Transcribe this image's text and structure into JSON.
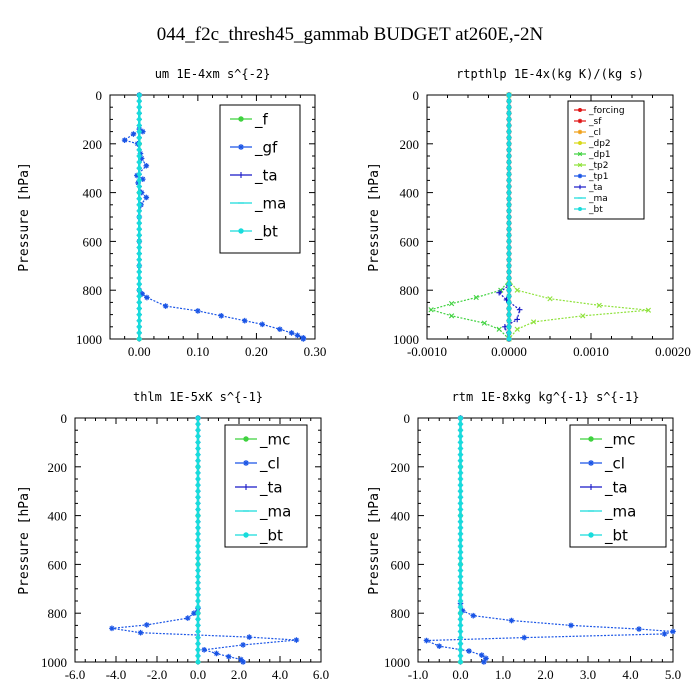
{
  "figure_title": "044_f2c_thresh45_gammab  BUDGET at260E,-2N",
  "colors": {
    "green": "#3fd23f",
    "blue": "#1a55e6",
    "dkblue": "#1818c8",
    "cyan": "#18dcdc",
    "red": "#e01414",
    "orange": "#f0a018",
    "yellow": "#d8d818",
    "ltgreen": "#8ee23a"
  },
  "chart_data": [
    {
      "type": "line",
      "title": "um  1E-4xm s^{-2}",
      "ylabel": "Pressure [hPa]",
      "xlim": [
        -0.05,
        0.3
      ],
      "ylim": [
        1000,
        0
      ],
      "y_inverted": true,
      "xticks": [
        "0.00",
        "0.10",
        "0.20",
        "0.30"
      ],
      "xtick_values": [
        0,
        0.1,
        0.2,
        0.3
      ],
      "yticks": [
        "0",
        "200",
        "400",
        "600",
        "800",
        "1000"
      ],
      "legend_position": "top-right",
      "series": [
        {
          "name": "_f",
          "color": "green",
          "marker": "o",
          "points": [
            [
              0,
              0
            ],
            [
              0,
              200
            ],
            [
              0,
              400
            ],
            [
              0,
              600
            ],
            [
              0,
              800
            ],
            [
              0,
              1000
            ]
          ]
        },
        {
          "name": "_gf",
          "color": "blue",
          "marker": "*",
          "points": [
            [
              0,
              0
            ],
            [
              0,
              140
            ],
            [
              0.006,
              150
            ],
            [
              -0.01,
              160
            ],
            [
              -0.025,
              185
            ],
            [
              -0.003,
              200
            ],
            [
              0.002,
              240
            ],
            [
              0.004,
              260
            ],
            [
              0.012,
              290
            ],
            [
              -0.004,
              330
            ],
            [
              0.006,
              345
            ],
            [
              -0.002,
              360
            ],
            [
              0.004,
              400
            ],
            [
              0.012,
              420
            ],
            [
              0.003,
              450
            ],
            [
              0,
              500
            ],
            [
              0,
              600
            ],
            [
              0,
              700
            ],
            [
              0,
              800
            ],
            [
              0.005,
              815
            ],
            [
              0.013,
              830
            ],
            [
              0.045,
              865
            ],
            [
              0.1,
              885
            ],
            [
              0.14,
              905
            ],
            [
              0.18,
              925
            ],
            [
              0.21,
              940
            ],
            [
              0.24,
              960
            ],
            [
              0.26,
              975
            ],
            [
              0.27,
              985
            ],
            [
              0.28,
              995
            ],
            [
              0.28,
              1000
            ]
          ]
        },
        {
          "name": "_ta",
          "color": "dkblue",
          "marker": "+",
          "points": [
            [
              0,
              0
            ],
            [
              0,
              1000
            ]
          ]
        },
        {
          "name": "_ma",
          "color": "cyan",
          "marker": "-",
          "points": [
            [
              0,
              0
            ],
            [
              0,
              1000
            ]
          ]
        },
        {
          "name": "_bt",
          "color": "cyan",
          "marker": "o",
          "points": [
            [
              0,
              0
            ],
            [
              0,
              1000
            ]
          ]
        }
      ]
    },
    {
      "type": "line",
      "title": "rtpthlp  1E-4x(kg K)/(kg s)",
      "ylabel": "Pressure [hPa]",
      "xlim": [
        -0.001,
        0.002
      ],
      "ylim": [
        1000,
        0
      ],
      "y_inverted": true,
      "xticks": [
        "-0.0010",
        "0.0000",
        "0.0010",
        "0.0020"
      ],
      "xtick_values": [
        -0.001,
        0,
        0.001,
        0.002
      ],
      "yticks": [
        "0",
        "200",
        "400",
        "600",
        "800",
        "1000"
      ],
      "legend_position": "top-right",
      "series": [
        {
          "name": "_forcing",
          "color": "red",
          "marker": "o",
          "points": [
            [
              0,
              0
            ],
            [
              0,
              1000
            ]
          ]
        },
        {
          "name": "_sf",
          "color": "red",
          "marker": "*",
          "points": [
            [
              0,
              0
            ],
            [
              0,
              1000
            ]
          ]
        },
        {
          "name": "_cl",
          "color": "orange",
          "marker": "*",
          "points": [
            [
              0,
              0
            ],
            [
              0,
              1000
            ]
          ]
        },
        {
          "name": "_dp2",
          "color": "yellow",
          "marker": "o",
          "points": [
            [
              0,
              0
            ],
            [
              0,
              1000
            ]
          ]
        },
        {
          "name": "_dp1",
          "color": "green",
          "marker": "x",
          "points": [
            [
              0,
              0
            ],
            [
              0,
              760
            ],
            [
              -0.0001,
              800
            ],
            [
              -0.0004,
              830
            ],
            [
              -0.0007,
              855
            ],
            [
              -0.00095,
              880
            ],
            [
              -0.0007,
              905
            ],
            [
              -0.0003,
              935
            ],
            [
              -0.00012,
              960
            ],
            [
              0,
              1000
            ]
          ]
        },
        {
          "name": "_tp2",
          "color": "ltgreen",
          "marker": "x",
          "points": [
            [
              0,
              0
            ],
            [
              0,
              760
            ],
            [
              0.0001,
              800
            ],
            [
              0.0005,
              835
            ],
            [
              0.0011,
              862
            ],
            [
              0.0017,
              882
            ],
            [
              0.0009,
              905
            ],
            [
              0.0003,
              930
            ],
            [
              0.0001,
              960
            ],
            [
              0,
              1000
            ]
          ]
        },
        {
          "name": "_tp1",
          "color": "blue",
          "marker": "*",
          "points": [
            [
              0,
              0
            ],
            [
              0,
              1000
            ]
          ]
        },
        {
          "name": "_ta",
          "color": "dkblue",
          "marker": "+",
          "points": [
            [
              0,
              0
            ],
            [
              0,
              780
            ],
            [
              -0.00012,
              810
            ],
            [
              -3e-05,
              840
            ],
            [
              0.00013,
              880
            ],
            [
              0.0001,
              920
            ],
            [
              -5e-05,
              950
            ],
            [
              0,
              1000
            ]
          ]
        },
        {
          "name": "_ma",
          "color": "cyan",
          "marker": "-",
          "points": [
            [
              0,
              0
            ],
            [
              0,
              1000
            ]
          ]
        },
        {
          "name": "_bt",
          "color": "cyan",
          "marker": "o",
          "points": [
            [
              0,
              0
            ],
            [
              0,
              1000
            ]
          ]
        }
      ]
    },
    {
      "type": "line",
      "title": "thlm  1E-5xK s^{-1}",
      "ylabel": "Pressure [hPa]",
      "xlim": [
        -6,
        6
      ],
      "ylim": [
        1000,
        0
      ],
      "y_inverted": true,
      "xticks": [
        "-6.0",
        "-4.0",
        "-2.0",
        "0.0",
        "2.0",
        "4.0",
        "6.0"
      ],
      "xtick_values": [
        -6,
        -4,
        -2,
        0,
        2,
        4,
        6
      ],
      "yticks": [
        "0",
        "200",
        "400",
        "600",
        "800",
        "1000"
      ],
      "legend_position": "top-right",
      "series": [
        {
          "name": "_mc",
          "color": "green",
          "marker": "o",
          "points": [
            [
              0,
              0
            ],
            [
              0,
              200
            ],
            [
              0,
              400
            ],
            [
              0,
              600
            ],
            [
              0,
              800
            ],
            [
              0,
              1000
            ]
          ]
        },
        {
          "name": "_cl",
          "color": "blue",
          "marker": "*",
          "points": [
            [
              0,
              0
            ],
            [
              0,
              780
            ],
            [
              -0.2,
              800
            ],
            [
              -0.5,
              820
            ],
            [
              -2.5,
              848
            ],
            [
              -4.2,
              862
            ],
            [
              -2.8,
              880
            ],
            [
              2.5,
              898
            ],
            [
              4.8,
              910
            ],
            [
              2.2,
              930
            ],
            [
              0.3,
              950
            ],
            [
              0.9,
              965
            ],
            [
              1.5,
              978
            ],
            [
              2.1,
              990
            ],
            [
              2.2,
              1000
            ]
          ]
        },
        {
          "name": "_ta",
          "color": "dkblue",
          "marker": "+",
          "points": [
            [
              0,
              0
            ],
            [
              0,
              1000
            ]
          ]
        },
        {
          "name": "_ma",
          "color": "cyan",
          "marker": "-",
          "points": [
            [
              0,
              0
            ],
            [
              0,
              1000
            ]
          ]
        },
        {
          "name": "_bt",
          "color": "cyan",
          "marker": "o",
          "points": [
            [
              0,
              0
            ],
            [
              0,
              1000
            ]
          ]
        }
      ]
    },
    {
      "type": "line",
      "title": "rtm  1E-8xkg kg^{-1} s^{-1}",
      "ylabel": "Pressure [hPa]",
      "xlim": [
        -1,
        5
      ],
      "ylim": [
        1000,
        0
      ],
      "y_inverted": true,
      "xticks": [
        "-1.0",
        "0.0",
        "1.0",
        "2.0",
        "3.0",
        "4.0",
        "5.0"
      ],
      "xtick_values": [
        -1,
        0,
        1,
        2,
        3,
        4,
        5
      ],
      "yticks": [
        "0",
        "200",
        "400",
        "600",
        "800",
        "1000"
      ],
      "legend_position": "top-right",
      "series": [
        {
          "name": "_mc",
          "color": "green",
          "marker": "o",
          "points": [
            [
              0,
              0
            ],
            [
              0,
              200
            ],
            [
              0,
              400
            ],
            [
              0,
              600
            ],
            [
              0,
              800
            ],
            [
              0,
              1000
            ]
          ]
        },
        {
          "name": "_cl",
          "color": "blue",
          "marker": "*",
          "points": [
            [
              0,
              0
            ],
            [
              0,
              760
            ],
            [
              0.05,
              790
            ],
            [
              0.3,
              810
            ],
            [
              1.2,
              830
            ],
            [
              2.6,
              850
            ],
            [
              4.2,
              865
            ],
            [
              5.0,
              875
            ],
            [
              4.8,
              885
            ],
            [
              1.5,
              900
            ],
            [
              -0.8,
              912
            ],
            [
              -0.5,
              935
            ],
            [
              0.2,
              955
            ],
            [
              0.5,
              972
            ],
            [
              0.6,
              985
            ],
            [
              0.55,
              1000
            ]
          ]
        },
        {
          "name": "_ta",
          "color": "dkblue",
          "marker": "+",
          "points": [
            [
              0,
              0
            ],
            [
              0,
              1000
            ]
          ]
        },
        {
          "name": "_ma",
          "color": "cyan",
          "marker": "-",
          "points": [
            [
              0,
              0
            ],
            [
              0,
              1000
            ]
          ]
        },
        {
          "name": "_bt",
          "color": "cyan",
          "marker": "o",
          "points": [
            [
              0,
              0
            ],
            [
              0,
              1000
            ]
          ]
        }
      ]
    }
  ]
}
